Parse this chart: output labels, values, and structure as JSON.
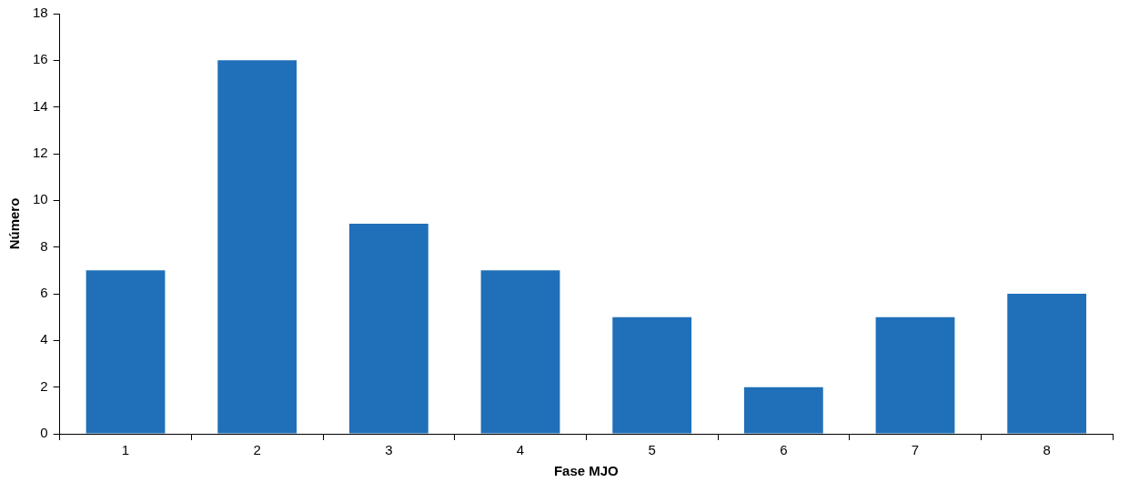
{
  "chart_data": {
    "type": "bar",
    "xlabel": "Fase MJO",
    "ylabel": "Número",
    "categories": [
      "1",
      "2",
      "3",
      "4",
      "5",
      "6",
      "7",
      "8"
    ],
    "values": [
      7,
      16,
      9,
      7,
      5,
      2,
      5,
      6
    ],
    "color": "#1f70b8",
    "ylim": [
      0,
      18
    ],
    "yticks": [
      0,
      2,
      4,
      6,
      8,
      10,
      12,
      14,
      16,
      18
    ],
    "grid": false,
    "legend": false
  }
}
